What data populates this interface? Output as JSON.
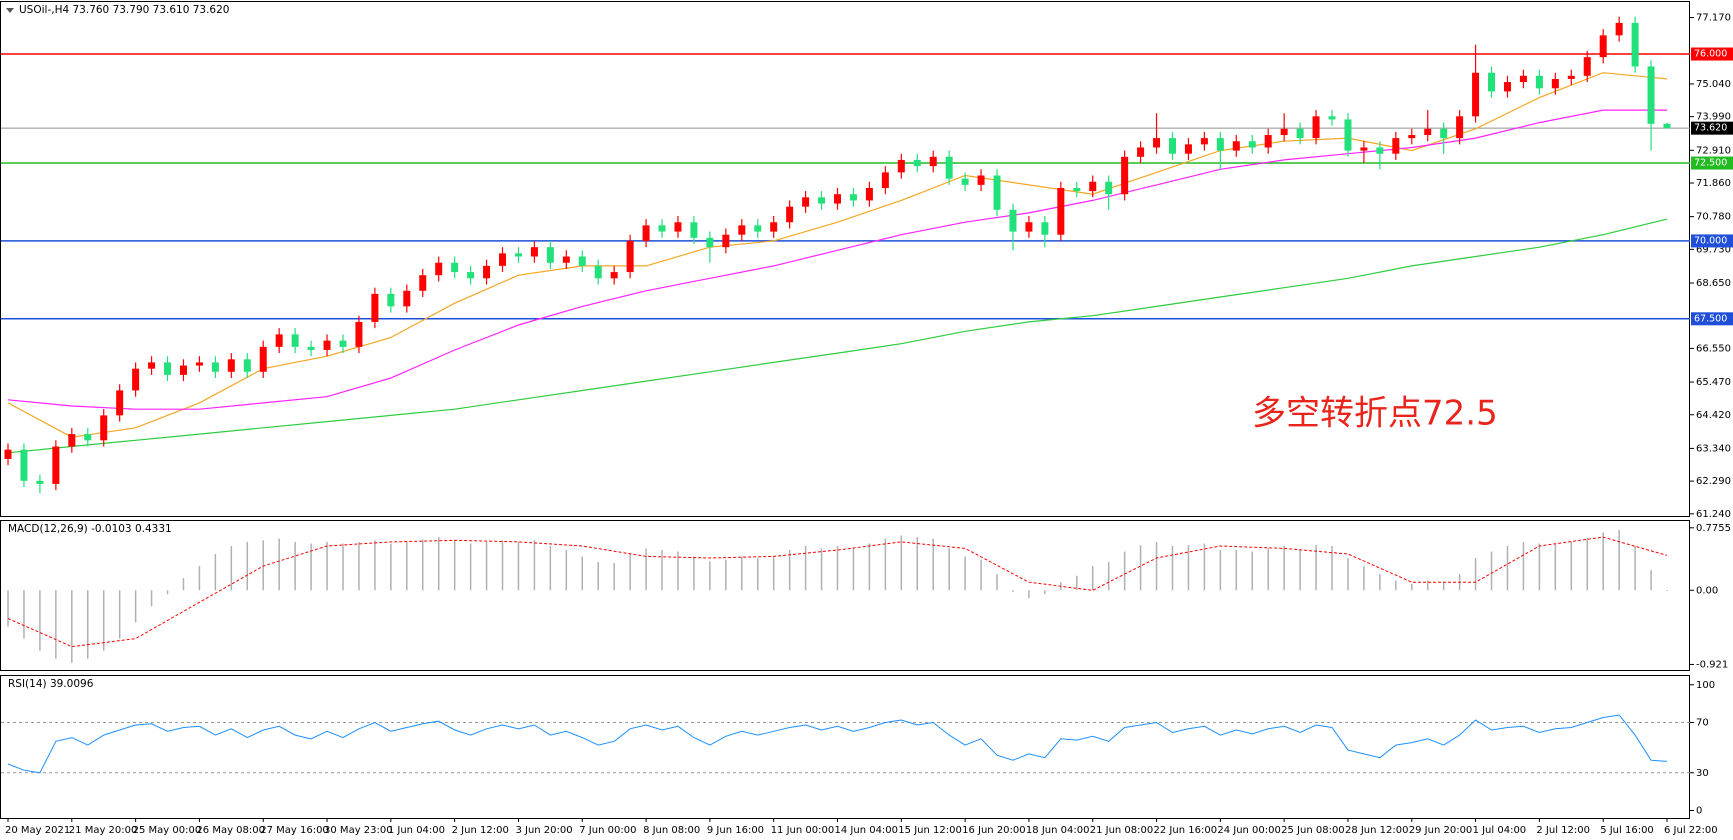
{
  "chart_data": [
    {
      "type": "candlestick",
      "title": "USOil-,H4  73.760 73.790 73.610 73.620",
      "annotation": "多空转折点72.5",
      "up_color": "#ff0000",
      "down_color": "#22e07a",
      "categories": [
        "20 May 2021",
        null,
        null,
        null,
        "21 May 20:00",
        null,
        null,
        null,
        "25 May 00:00",
        null,
        null,
        null,
        "26 May 08:00",
        null,
        null,
        null,
        "27 May 16:00",
        null,
        null,
        null,
        "30 May 23:00",
        null,
        null,
        null,
        "1 Jun 04:00",
        null,
        null,
        null,
        "2 Jun 12:00",
        null,
        null,
        null,
        "3 Jun 20:00",
        null,
        null,
        null,
        "7 Jun 00:00",
        null,
        null,
        null,
        "8 Jun 08:00",
        null,
        null,
        null,
        "9 Jun 16:00",
        null,
        null,
        null,
        "11 Jun 00:00",
        null,
        null,
        null,
        "14 Jun 04:00",
        null,
        null,
        null,
        "15 Jun 12:00",
        null,
        null,
        null,
        "16 Jun 20:00",
        null,
        null,
        null,
        "18 Jun 04:00",
        null,
        null,
        null,
        "21 Jun 08:00",
        null,
        null,
        null,
        "22 Jun 16:00",
        null,
        null,
        null,
        "24 Jun 00:00",
        null,
        null,
        null,
        "25 Jun 08:00",
        null,
        null,
        null,
        "28 Jun 12:00",
        null,
        null,
        null,
        "29 Jun 20:00",
        null,
        null,
        null,
        "1 Jul 04:00",
        null,
        null,
        null,
        "2 Jul 12:00",
        null,
        null,
        null,
        "5 Jul 16:00",
        null,
        null,
        null,
        "6 Jul 22:00"
      ],
      "open": [
        63.0,
        63.3,
        62.3,
        62.2,
        63.4,
        63.8,
        63.6,
        64.4,
        65.2,
        65.9,
        66.1,
        65.7,
        66.0,
        66.1,
        65.8,
        66.2,
        65.8,
        66.6,
        67.0,
        66.6,
        66.5,
        66.8,
        66.6,
        67.4,
        68.3,
        67.9,
        68.4,
        68.9,
        69.3,
        69.0,
        68.8,
        69.2,
        69.6,
        69.5,
        69.8,
        69.3,
        69.5,
        69.2,
        68.8,
        69.0,
        70.0,
        70.5,
        70.3,
        70.6,
        70.1,
        69.8,
        70.2,
        70.5,
        70.3,
        70.6,
        71.1,
        71.4,
        71.2,
        71.5,
        71.3,
        71.7,
        72.2,
        72.6,
        72.4,
        72.7,
        72.0,
        71.8,
        72.1,
        71.0,
        70.3,
        70.6,
        70.2,
        71.7,
        71.6,
        71.9,
        71.5,
        72.7,
        73.0,
        73.3,
        72.8,
        73.1,
        73.3,
        72.9,
        73.2,
        73.0,
        73.4,
        73.6,
        73.3,
        74.0,
        73.9,
        72.9,
        73.0,
        72.8,
        73.3,
        73.4,
        73.6,
        73.3,
        74.0,
        75.4,
        74.8,
        75.1,
        75.3,
        74.9,
        75.2,
        75.3,
        75.9,
        76.6,
        77.0,
        75.6,
        73.76
      ],
      "high": [
        63.5,
        63.5,
        62.5,
        63.6,
        64.0,
        64.0,
        64.6,
        65.4,
        66.1,
        66.3,
        66.3,
        66.2,
        66.3,
        66.3,
        66.4,
        66.4,
        66.8,
        67.2,
        67.2,
        66.8,
        67.0,
        67.0,
        67.6,
        68.5,
        68.5,
        68.6,
        69.1,
        69.5,
        69.5,
        69.2,
        69.4,
        69.8,
        69.8,
        70.0,
        70.0,
        69.7,
        69.7,
        69.4,
        69.2,
        70.2,
        70.7,
        70.7,
        70.8,
        70.8,
        70.3,
        70.4,
        70.7,
        70.7,
        70.8,
        71.3,
        71.6,
        71.6,
        71.7,
        71.7,
        71.9,
        72.4,
        72.8,
        72.8,
        72.9,
        72.9,
        72.2,
        72.3,
        72.3,
        71.2,
        70.8,
        70.8,
        71.9,
        71.9,
        72.1,
        72.1,
        72.9,
        73.2,
        74.1,
        73.5,
        73.3,
        73.5,
        73.5,
        73.4,
        73.4,
        73.6,
        74.1,
        73.8,
        74.2,
        74.2,
        74.1,
        73.2,
        73.2,
        73.5,
        73.6,
        74.2,
        73.8,
        74.2,
        76.3,
        75.6,
        75.3,
        75.5,
        75.5,
        75.4,
        75.5,
        76.1,
        76.8,
        77.2,
        77.2,
        75.8,
        73.79
      ],
      "low": [
        62.8,
        62.1,
        61.9,
        62.0,
        63.2,
        63.4,
        63.4,
        64.2,
        65.0,
        65.7,
        65.5,
        65.5,
        65.8,
        65.6,
        65.6,
        65.6,
        65.6,
        66.4,
        66.4,
        66.3,
        66.3,
        66.4,
        66.4,
        67.2,
        67.7,
        67.7,
        68.2,
        68.7,
        68.8,
        68.6,
        68.6,
        69.0,
        69.3,
        69.3,
        69.1,
        69.1,
        69.0,
        68.6,
        68.6,
        68.8,
        69.8,
        70.1,
        70.1,
        69.9,
        69.3,
        69.6,
        70.0,
        70.1,
        70.1,
        70.4,
        70.9,
        71.0,
        71.0,
        71.1,
        71.1,
        71.5,
        72.0,
        72.2,
        72.2,
        71.8,
        71.6,
        71.6,
        70.8,
        69.7,
        70.1,
        69.8,
        70.0,
        71.4,
        71.4,
        71.0,
        71.3,
        72.5,
        72.8,
        72.6,
        72.6,
        72.9,
        72.3,
        72.7,
        72.8,
        72.8,
        73.2,
        73.1,
        73.1,
        73.7,
        72.7,
        72.5,
        72.3,
        72.6,
        73.1,
        73.2,
        72.8,
        73.1,
        73.8,
        74.6,
        74.6,
        74.9,
        74.7,
        74.7,
        75.0,
        75.1,
        75.7,
        76.4,
        75.4,
        72.9,
        73.61
      ],
      "close": [
        63.3,
        62.3,
        62.2,
        63.4,
        63.8,
        63.6,
        64.4,
        65.2,
        65.9,
        66.1,
        65.7,
        66.0,
        66.1,
        65.8,
        66.2,
        65.8,
        66.6,
        67.0,
        66.6,
        66.5,
        66.8,
        66.6,
        67.4,
        68.3,
        67.9,
        68.4,
        68.9,
        69.3,
        69.0,
        68.8,
        69.2,
        69.6,
        69.5,
        69.8,
        69.3,
        69.5,
        69.2,
        68.8,
        69.0,
        70.0,
        70.5,
        70.3,
        70.6,
        70.1,
        69.8,
        70.2,
        70.5,
        70.3,
        70.6,
        71.1,
        71.4,
        71.2,
        71.5,
        71.3,
        71.7,
        72.2,
        72.6,
        72.4,
        72.7,
        72.0,
        71.8,
        72.1,
        71.0,
        70.3,
        70.6,
        70.2,
        71.7,
        71.6,
        71.9,
        71.5,
        72.7,
        73.0,
        73.3,
        72.8,
        73.1,
        73.3,
        72.9,
        73.2,
        73.0,
        73.4,
        73.6,
        73.3,
        74.0,
        73.9,
        72.9,
        73.0,
        72.8,
        73.3,
        73.4,
        73.6,
        73.3,
        74.0,
        75.4,
        74.8,
        75.1,
        75.3,
        74.9,
        75.2,
        75.3,
        75.9,
        76.6,
        77.0,
        75.6,
        73.76,
        73.62
      ],
      "series": [
        {
          "color": "#f5a623",
          "x": [
            0,
            4,
            8,
            12,
            16,
            20,
            24,
            28,
            32,
            36,
            40,
            44,
            48,
            52,
            56,
            60,
            64,
            68,
            72,
            76,
            80,
            84,
            88,
            92,
            96,
            100,
            104
          ],
          "values": [
            64.8,
            63.7,
            64.0,
            64.8,
            65.9,
            66.3,
            66.9,
            68.0,
            68.9,
            69.2,
            69.2,
            69.8,
            70.0,
            70.6,
            71.3,
            72.1,
            71.8,
            71.5,
            72.2,
            72.9,
            73.2,
            73.3,
            72.9,
            73.6,
            74.6,
            75.4,
            75.2
          ]
        },
        {
          "color": "#ff22ff",
          "x": [
            0,
            4,
            8,
            12,
            16,
            20,
            24,
            28,
            32,
            36,
            40,
            44,
            48,
            52,
            56,
            60,
            64,
            68,
            72,
            76,
            80,
            84,
            88,
            92,
            96,
            100,
            104
          ],
          "values": [
            64.9,
            64.7,
            64.6,
            64.6,
            64.8,
            65.0,
            65.6,
            66.5,
            67.3,
            67.9,
            68.4,
            68.8,
            69.2,
            69.7,
            70.2,
            70.6,
            70.9,
            71.3,
            71.8,
            72.3,
            72.6,
            72.8,
            73.0,
            73.3,
            73.8,
            74.2,
            74.2
          ]
        },
        {
          "color": "#2ecc40",
          "x": [
            0,
            4,
            8,
            12,
            16,
            20,
            24,
            28,
            32,
            36,
            40,
            44,
            48,
            52,
            56,
            60,
            64,
            68,
            72,
            76,
            80,
            84,
            88,
            92,
            96,
            100,
            104
          ],
          "values": [
            63.2,
            63.4,
            63.6,
            63.8,
            64.0,
            64.2,
            64.4,
            64.6,
            64.9,
            65.2,
            65.5,
            65.8,
            66.1,
            66.4,
            66.7,
            67.1,
            67.4,
            67.6,
            67.9,
            68.2,
            68.5,
            68.8,
            69.2,
            69.5,
            69.8,
            70.2,
            70.7
          ]
        }
      ],
      "hlines": [
        {
          "value": 76,
          "label": "76.000",
          "color": "#ff0000"
        },
        {
          "value": 72.5,
          "label": "72.500",
          "color": "#22bb22"
        },
        {
          "value": 70,
          "label": "70.000",
          "color": "#1f4fd8"
        },
        {
          "value": 67.5,
          "label": "67.500",
          "color": "#1f4fd8"
        }
      ],
      "current": {
        "value": 73.62,
        "label": "73.620",
        "color": "#909090"
      },
      "ylim": [
        61.17,
        77.67
      ],
      "yticks": [
        {
          "value": 77.17,
          "label": "77.170"
        },
        {
          "value": 75.04,
          "label": "75.040"
        },
        {
          "value": 73.99,
          "label": "73.990"
        },
        {
          "value": 72.91,
          "label": "72.910"
        },
        {
          "value": 71.86,
          "label": "71.860"
        },
        {
          "value": 70.78,
          "label": "70.780"
        },
        {
          "value": 69.73,
          "label": "69.730"
        },
        {
          "value": 68.65,
          "label": "68.650"
        },
        {
          "value": 66.55,
          "label": "66.550"
        },
        {
          "value": 65.47,
          "label": "65.470"
        },
        {
          "value": 64.42,
          "label": "64.420"
        },
        {
          "value": 63.34,
          "label": "63.340"
        },
        {
          "value": 62.29,
          "label": "62.290"
        },
        {
          "value": 61.24,
          "label": "61.240"
        }
      ]
    },
    {
      "type": "macd",
      "title": "MACD(12,26,9) -0.0103 0.4331",
      "color": "#b0b0b0",
      "values": [
        -0.45,
        -0.6,
        -0.75,
        -0.85,
        -0.9,
        -0.85,
        -0.75,
        -0.6,
        -0.4,
        -0.2,
        -0.05,
        0.15,
        0.3,
        0.45,
        0.55,
        0.6,
        0.62,
        0.64,
        0.6,
        0.58,
        0.6,
        0.58,
        0.6,
        0.62,
        0.58,
        0.6,
        0.63,
        0.66,
        0.62,
        0.58,
        0.6,
        0.62,
        0.6,
        0.62,
        0.55,
        0.5,
        0.42,
        0.35,
        0.34,
        0.45,
        0.52,
        0.5,
        0.48,
        0.42,
        0.36,
        0.38,
        0.42,
        0.4,
        0.42,
        0.5,
        0.55,
        0.52,
        0.55,
        0.52,
        0.58,
        0.64,
        0.68,
        0.66,
        0.64,
        0.52,
        0.42,
        0.38,
        0.2,
        -0.02,
        -0.1,
        -0.05,
        0.1,
        0.18,
        0.3,
        0.35,
        0.48,
        0.56,
        0.6,
        0.55,
        0.56,
        0.58,
        0.5,
        0.5,
        0.48,
        0.52,
        0.55,
        0.5,
        0.56,
        0.55,
        0.4,
        0.3,
        0.2,
        0.12,
        0.08,
        0.12,
        0.1,
        0.2,
        0.4,
        0.48,
        0.55,
        0.6,
        0.58,
        0.58,
        0.6,
        0.65,
        0.72,
        0.75,
        0.55,
        0.25,
        -0.0103
      ],
      "signal": {
        "color": "#ff0000",
        "x": [
          0,
          4,
          8,
          12,
          16,
          20,
          24,
          28,
          32,
          36,
          40,
          44,
          48,
          52,
          56,
          60,
          64,
          68,
          72,
          76,
          80,
          84,
          88,
          92,
          96,
          100,
          104
        ],
        "values": [
          -0.35,
          -0.7,
          -0.6,
          -0.15,
          0.3,
          0.55,
          0.6,
          0.62,
          0.6,
          0.55,
          0.42,
          0.4,
          0.42,
          0.5,
          0.6,
          0.52,
          0.1,
          0.0,
          0.4,
          0.55,
          0.52,
          0.45,
          0.1,
          0.1,
          0.55,
          0.66,
          0.4331
        ]
      },
      "ylim": [
        -0.99,
        0.86
      ],
      "yticks": [
        0.7755,
        {
          "value": 0,
          "label": "0.00"
        },
        -0.921
      ]
    },
    {
      "type": "line",
      "title": "RSI(14) 39.0096",
      "color": "#1e90ff",
      "values": [
        37,
        32,
        30,
        55,
        58,
        52,
        60,
        64,
        68,
        69,
        63,
        66,
        67,
        60,
        65,
        58,
        64,
        67,
        60,
        57,
        63,
        58,
        65,
        70,
        63,
        66,
        69,
        71,
        64,
        60,
        65,
        68,
        65,
        68,
        60,
        63,
        58,
        52,
        55,
        65,
        68,
        64,
        67,
        58,
        52,
        59,
        63,
        60,
        63,
        66,
        68,
        64,
        67,
        63,
        66,
        70,
        72,
        68,
        70,
        60,
        52,
        57,
        44,
        40,
        45,
        42,
        57,
        56,
        59,
        55,
        66,
        68,
        70,
        62,
        65,
        67,
        60,
        64,
        61,
        65,
        67,
        62,
        68,
        66,
        48,
        45,
        42,
        52,
        54,
        57,
        52,
        60,
        72,
        64,
        66,
        67,
        62,
        65,
        66,
        70,
        74,
        76,
        60,
        40,
        39.0096
      ],
      "levels": [
        70,
        30
      ],
      "ylim": [
        -6,
        107
      ],
      "yticks": [
        100,
        70,
        30,
        0
      ]
    }
  ]
}
